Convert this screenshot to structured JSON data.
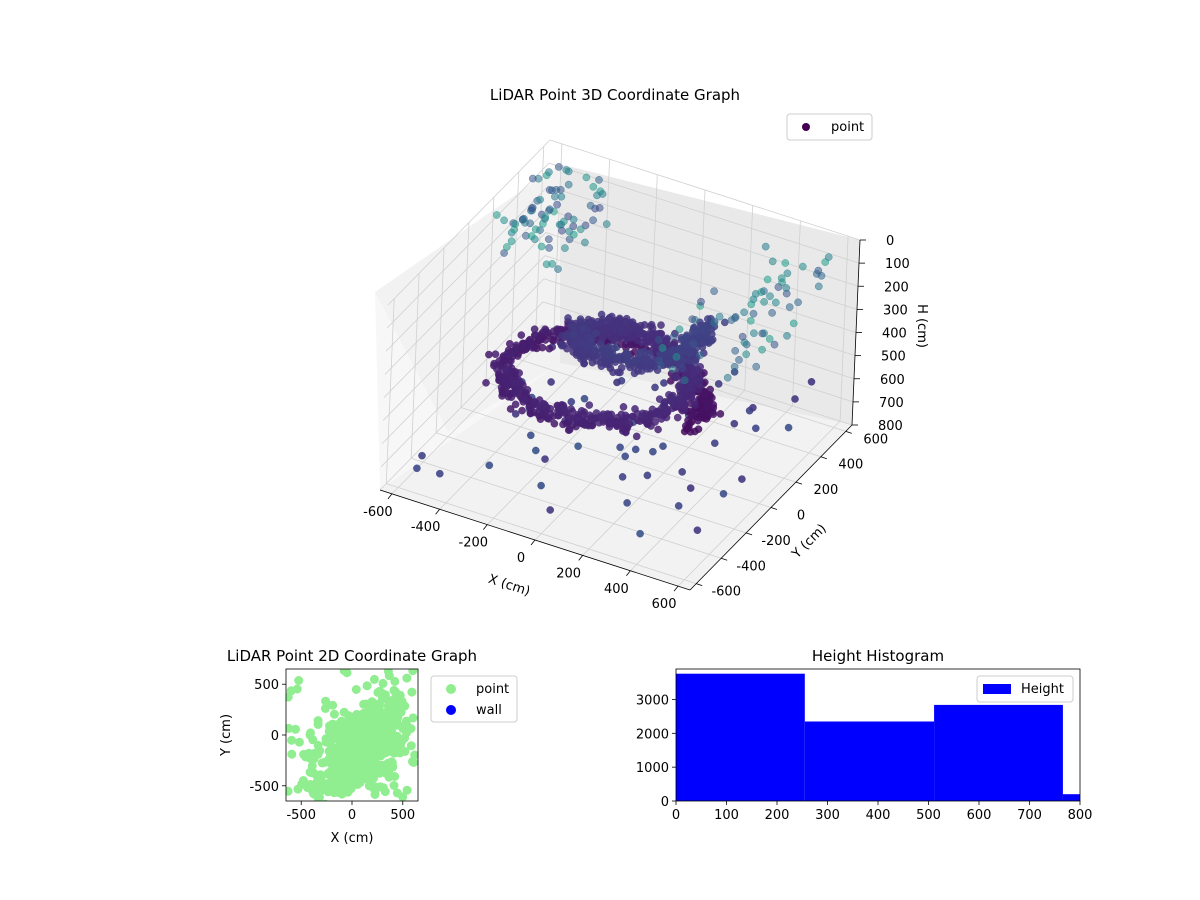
{
  "colors": {
    "viridis_dark": "#440154",
    "viridis_blue": "#3b528b",
    "viridis_teal": "#21918c",
    "viridis_green": "#5ec962",
    "point_2d": "#90ee90",
    "wall_2d": "#0000ff",
    "histogram": "#0000ff"
  },
  "chart_data": [
    {
      "type": "scatter",
      "title": "LiDAR Point 3D Coordinate Graph",
      "xlabel": "X (cm)",
      "ylabel": "Y (cm)",
      "zlabel": "H (cm)",
      "xlim": [
        -650,
        650
      ],
      "ylim": [
        -650,
        650
      ],
      "zlim": [
        0,
        800
      ],
      "z_inverted": true,
      "x_ticks": [
        "-600",
        "-400",
        "-200",
        "0",
        "200",
        "400",
        "600"
      ],
      "y_ticks": [
        "-600",
        "-400",
        "-200",
        "0",
        "200",
        "400",
        "600"
      ],
      "z_ticks": [
        "0",
        "100",
        "200",
        "300",
        "400",
        "500",
        "600",
        "700",
        "800"
      ],
      "colormap": "viridis",
      "legend": {
        "entries": [
          "point"
        ],
        "position": "top-right"
      },
      "series": [
        {
          "name": "point",
          "shape": "helical sweep of points spiraling around the scanner origin, radius about 300-500 cm, heights about 150-650 cm",
          "approx_count": 1400
        }
      ]
    },
    {
      "type": "scatter",
      "title": "LiDAR Point 2D Coordinate Graph",
      "xlabel": "X (cm)",
      "ylabel": "Y (cm)",
      "xlim": [
        -650,
        650
      ],
      "ylim": [
        -650,
        650
      ],
      "x_ticks": [
        "-500",
        "0",
        "500"
      ],
      "y_ticks": [
        "-500",
        "0",
        "500"
      ],
      "legend": {
        "entries": [
          "point",
          "wall"
        ],
        "position": "outside-right"
      },
      "series": [
        {
          "name": "point",
          "shape": "dense elliptical cloud centred near (100, -100) cm, tilted, spanning most of the square"
        },
        {
          "name": "wall",
          "values": []
        }
      ]
    },
    {
      "type": "bar",
      "title": "Height Histogram",
      "xlim": [
        0,
        800
      ],
      "ylim": [
        0,
        3900
      ],
      "x_ticks": [
        "0",
        "100",
        "200",
        "300",
        "400",
        "500",
        "600",
        "700",
        "800"
      ],
      "y_ticks": [
        "0",
        "1000",
        "2000",
        "3000"
      ],
      "legend": {
        "entries": [
          "Height"
        ],
        "position": "top-right"
      },
      "bins": [
        {
          "start": 0,
          "end": 255,
          "count": 3760
        },
        {
          "start": 255,
          "end": 511,
          "count": 2350
        },
        {
          "start": 511,
          "end": 766,
          "count": 2840
        },
        {
          "start": 766,
          "end": 800,
          "count": 200
        }
      ]
    }
  ]
}
